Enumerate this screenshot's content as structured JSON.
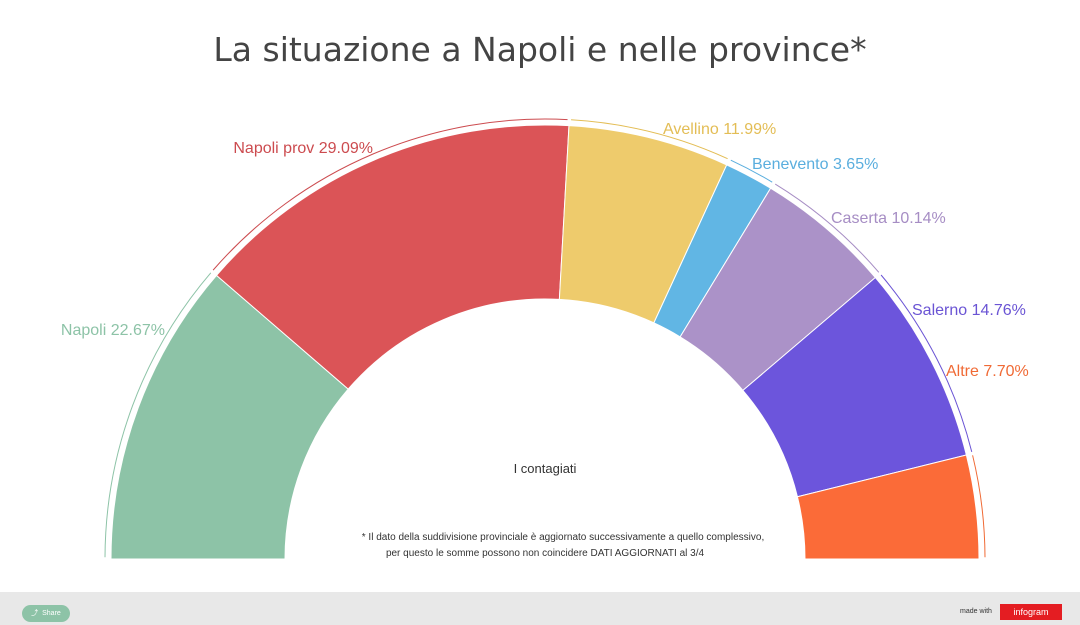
{
  "title": "La situazione a Napoli e nelle province*",
  "center_label": "I contagiati",
  "footnote_line1": "* Il dato della suddivisione provinciale è aggiornato successivamente a quello complessivo,",
  "footnote_line2": "per questo le somme possono non coincidere DATI AGGIORNATI al 3/4",
  "footer": {
    "share_label": "Share",
    "share_icon": "share-icon",
    "made_with": "made with",
    "brand": "infogram"
  },
  "chart_data": {
    "type": "pie",
    "variant": "semi-donut",
    "title": "La situazione a Napoli e nelle province*",
    "center_label": "I contagiati",
    "slices": [
      {
        "name": "Napoli",
        "value": 22.67,
        "label": "Napoli 22.67%",
        "color": "#8dc3a7"
      },
      {
        "name": "Napoli prov",
        "value": 29.09,
        "label": "Napoli prov 29.09%",
        "color": "#db5457"
      },
      {
        "name": "Avellino",
        "value": 11.99,
        "label": "Avellino 11.99%",
        "color": "#eecb6c"
      },
      {
        "name": "Benevento",
        "value": 3.65,
        "label": "Benevento 3.65%",
        "color": "#61b6e4"
      },
      {
        "name": "Caserta",
        "value": 10.14,
        "label": "Caserta 10.14%",
        "color": "#ab92c8"
      },
      {
        "name": "Salerno",
        "value": 14.76,
        "label": "Salerno 14.76%",
        "color": "#6c55dc"
      },
      {
        "name": "Altre",
        "value": 7.7,
        "label": "Altre 7.70%",
        "color": "#fb6b38"
      }
    ],
    "label_colors": {
      "Napoli": "#8dc3a7",
      "Napoli prov": "#cc4b4f",
      "Avellino": "#e3bd55",
      "Benevento": "#5aaede",
      "Caserta": "#a68dc4",
      "Salerno": "#6a54d4",
      "Altre": "#f06a35"
    }
  }
}
